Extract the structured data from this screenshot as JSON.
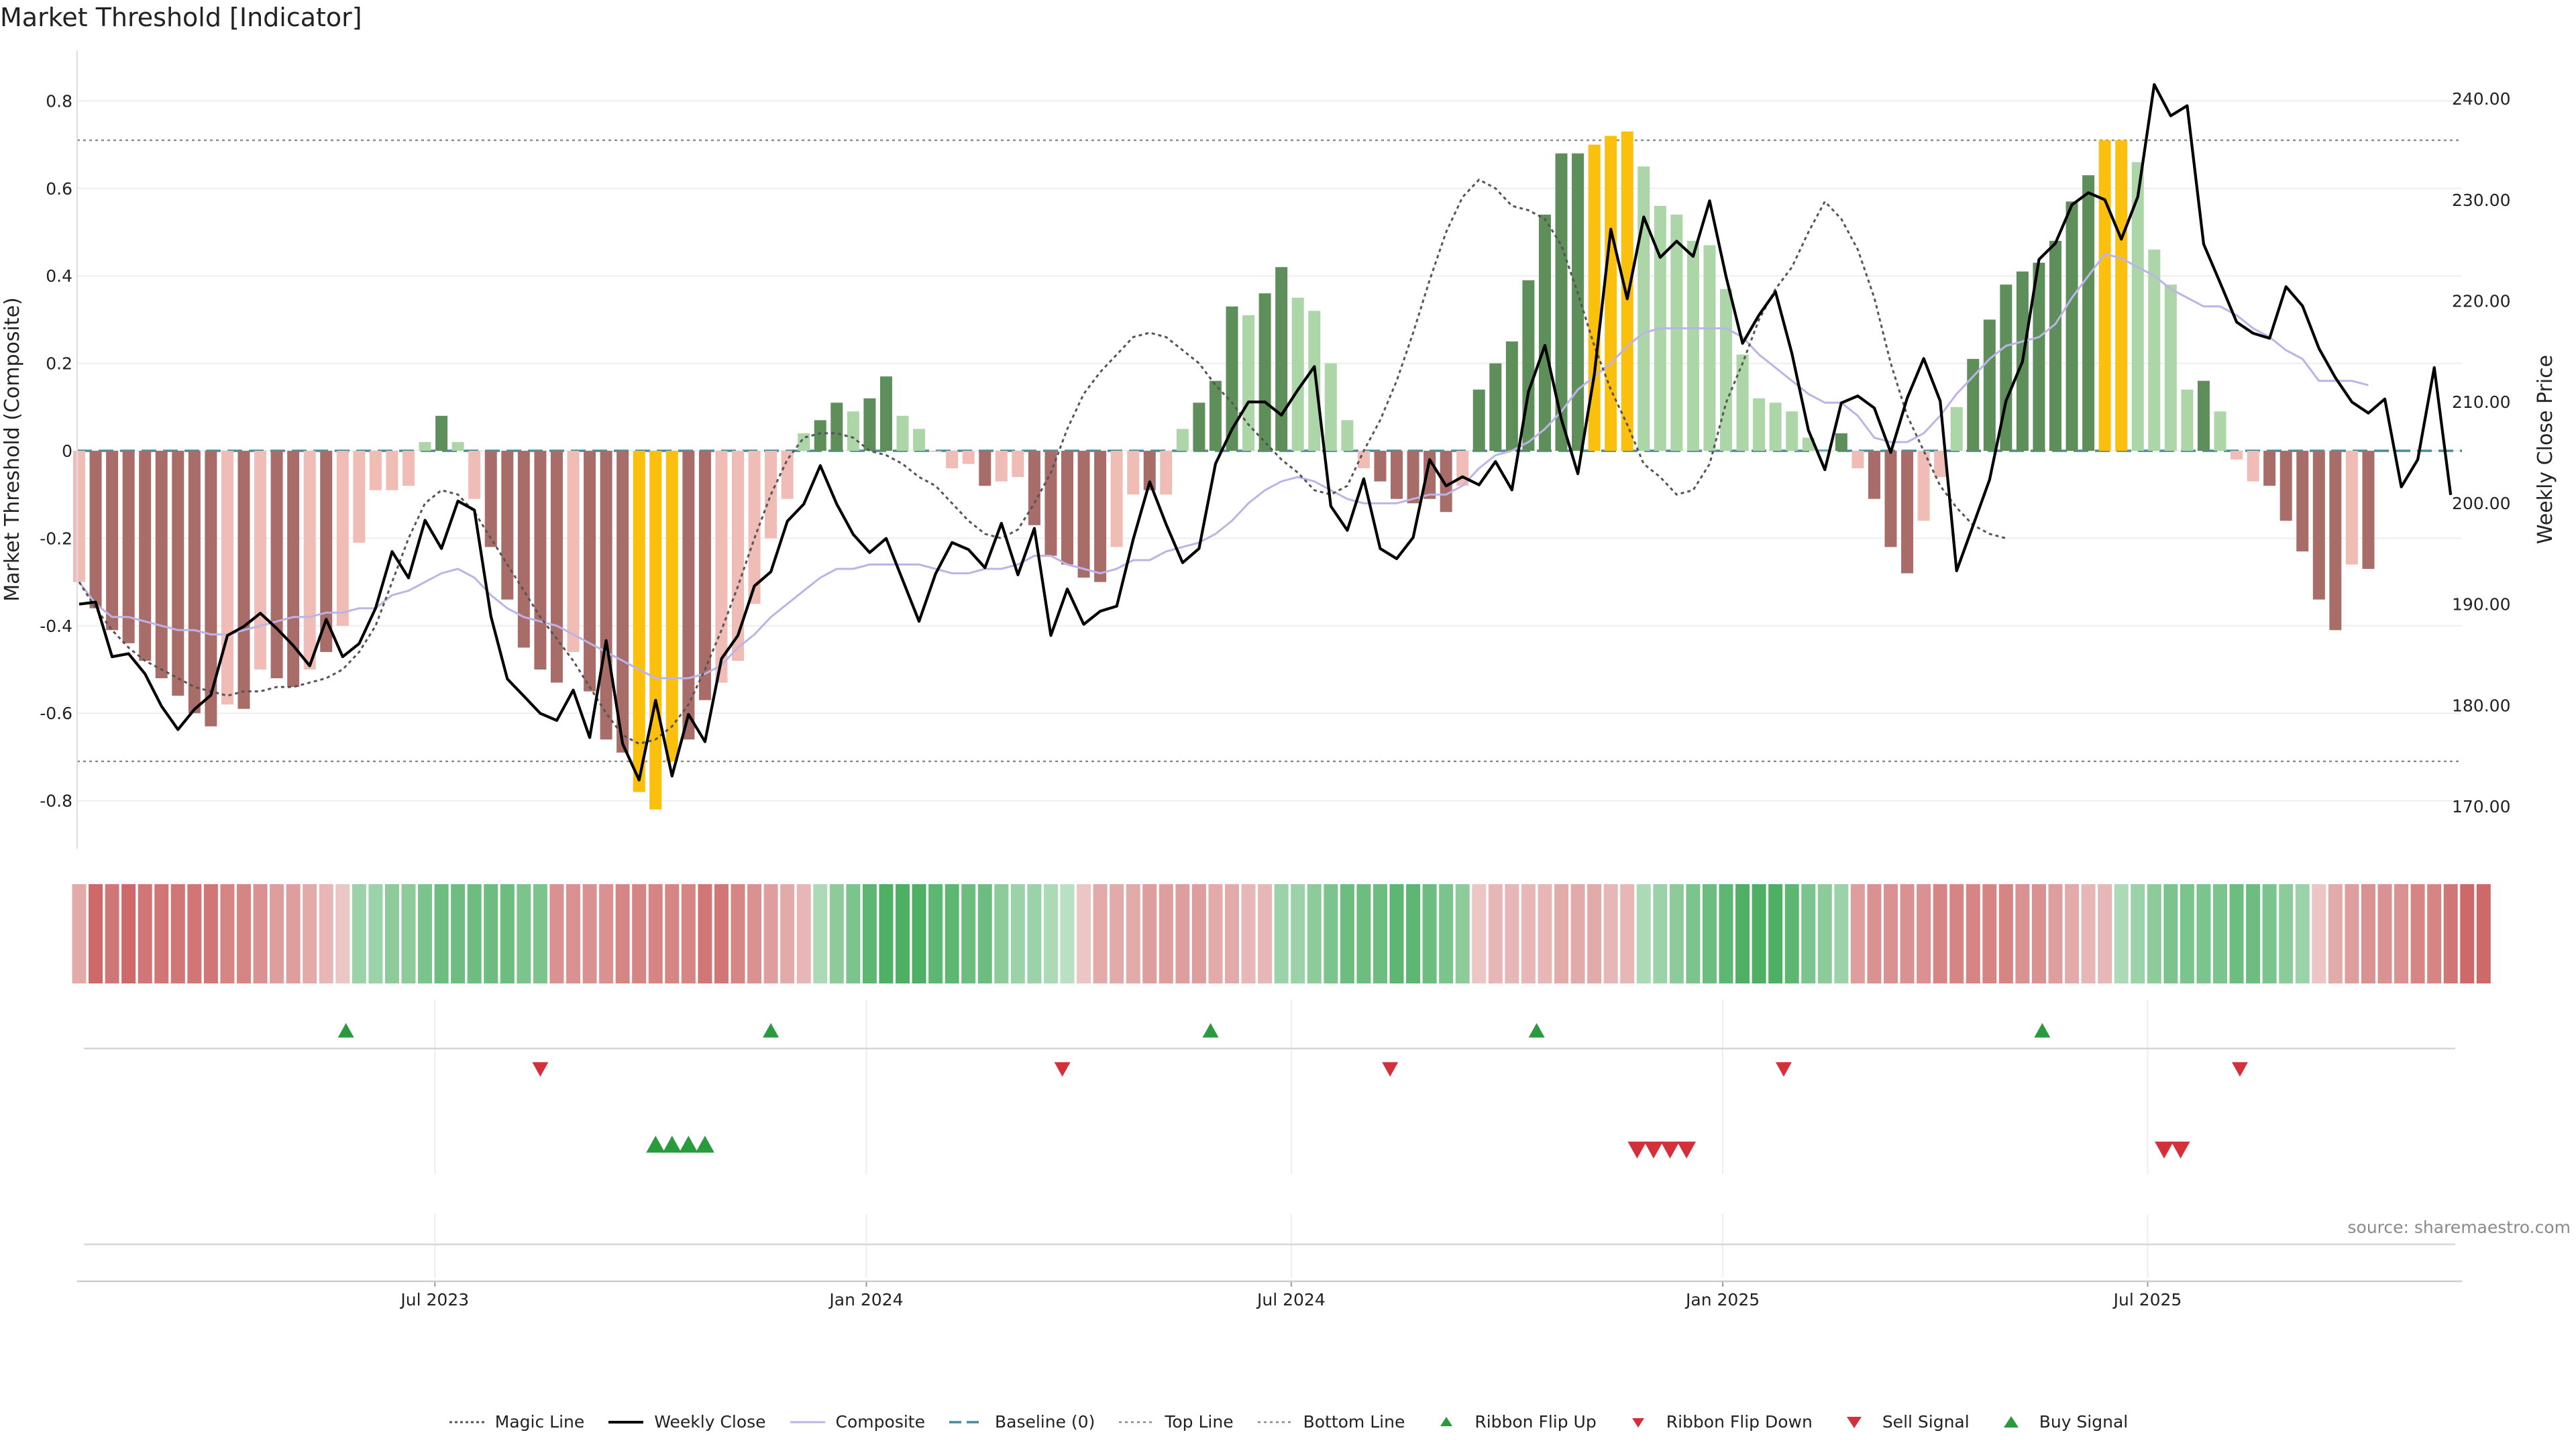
{
  "title": "Market Threshold [Indicator]",
  "source": "source: sharemaestro.com",
  "colors": {
    "bull_strong": "#5e8f5b",
    "bull_weak": "#acd6a8",
    "bear_strong": "#a86d68",
    "bear_weak": "#efbcb6",
    "extreme": "#fbbf0e",
    "magic": "#555555",
    "weekly_close": "#000000",
    "composite": "#bcb3e6",
    "baseline": "#4a8a99",
    "ribbon_up": "#2a9a3f",
    "ribbon_down": "#d3303a"
  },
  "legend": [
    {
      "label": "Magic Line",
      "icon": "dotted-line"
    },
    {
      "label": "Weekly Close",
      "icon": "solid-line"
    },
    {
      "label": "Composite",
      "icon": "lavender-line"
    },
    {
      "label": "Baseline (0)",
      "icon": "dashed-line"
    },
    {
      "label": "Top Line",
      "icon": "dotted-gray-line"
    },
    {
      "label": "Bottom Line",
      "icon": "dotted-gray-line"
    },
    {
      "label": "Ribbon Flip Up",
      "icon": "up-triangle"
    },
    {
      "label": "Ribbon Flip Down",
      "icon": "down-triangle"
    },
    {
      "label": "Sell Signal",
      "icon": "big-down-triangle"
    },
    {
      "label": "Buy Signal",
      "icon": "big-up-triangle"
    }
  ],
  "chart_data": {
    "type": "bar",
    "title": "Market Threshold [Indicator]",
    "ylabel": "Market Threshold (Composite)",
    "y2label": "Weekly Close Price",
    "ylim": [
      -0.92,
      0.92
    ],
    "y2lim": [
      166,
      243
    ],
    "y_ticks": [
      "0.8",
      "0.6",
      "0.4",
      "0.2",
      "0",
      "-0.2",
      "-0.4",
      "-0.6",
      "-0.8"
    ],
    "y2_ticks": [
      "240.00",
      "230.00",
      "220.00",
      "210.00",
      "200.00",
      "190.00",
      "180.00",
      "170.00"
    ],
    "x_ticks": [
      {
        "label": "Jul 2023",
        "week": 21.6
      },
      {
        "label": "Jan 2024",
        "week": 47.8
      },
      {
        "label": "Jul 2024",
        "week": 73.6
      },
      {
        "label": "Jan 2025",
        "week": 99.8
      },
      {
        "label": "Jul 2025",
        "week": 125.6
      }
    ],
    "top_line": 0.71,
    "bottom_line": -0.71,
    "baseline": 0,
    "weeks": 144,
    "composite_bars": [
      -0.3,
      -0.36,
      -0.41,
      -0.44,
      -0.48,
      -0.52,
      -0.56,
      -0.6,
      -0.63,
      -0.58,
      -0.59,
      -0.5,
      -0.52,
      -0.54,
      -0.5,
      -0.46,
      -0.4,
      -0.21,
      -0.09,
      -0.09,
      -0.08,
      0.02,
      0.08,
      0.02,
      -0.11,
      -0.22,
      -0.34,
      -0.45,
      -0.5,
      -0.53,
      -0.46,
      -0.55,
      -0.66,
      -0.69,
      -0.78,
      -0.82,
      -0.71,
      -0.66,
      -0.57,
      -0.53,
      -0.48,
      -0.35,
      -0.2,
      -0.11,
      0.04,
      0.07,
      0.11,
      0.09,
      0.12,
      0.17,
      0.08,
      0.05,
      0.0,
      -0.04,
      -0.03,
      -0.08,
      -0.07,
      -0.06,
      -0.17,
      -0.24,
      -0.26,
      -0.29,
      -0.3,
      -0.22,
      -0.1,
      -0.09,
      -0.1,
      0.05,
      0.11,
      0.16,
      0.33,
      0.31,
      0.36,
      0.42,
      0.35,
      0.32,
      0.2,
      0.07,
      -0.04,
      -0.07,
      -0.11,
      -0.12,
      -0.11,
      -0.14,
      -0.08,
      0.14,
      0.2,
      0.25,
      0.39,
      0.54,
      0.68,
      0.68,
      0.7,
      0.72,
      0.73,
      0.65,
      0.56,
      0.54,
      0.48,
      0.47,
      0.37,
      0.22,
      0.12,
      0.11,
      0.09,
      0.03,
      0.0,
      0.04,
      -0.04,
      -0.11,
      -0.22,
      -0.28,
      -0.16,
      -0.06,
      0.1,
      0.21,
      0.3,
      0.38,
      0.41,
      0.43,
      0.48,
      0.57,
      0.63,
      0.71,
      0.71,
      0.66,
      0.46,
      0.38,
      0.14,
      0.16,
      0.09,
      -0.02,
      -0.07,
      -0.08,
      -0.16,
      -0.23,
      -0.34,
      -0.41,
      -0.26,
      -0.27
    ],
    "bar_classes": [
      "bw",
      "bs",
      "bs",
      "bs",
      "bs",
      "bs",
      "bs",
      "bs",
      "bs",
      "bw",
      "bs",
      "bw",
      "bs",
      "bs",
      "bw",
      "bs",
      "bw",
      "bw",
      "bw",
      "bw",
      "bw",
      "gw",
      "gs",
      "gw",
      "bw",
      "bs",
      "bs",
      "bs",
      "bs",
      "bs",
      "bw",
      "bs",
      "bs",
      "bs",
      "ex",
      "ex",
      "ex",
      "bs",
      "bs",
      "bw",
      "bw",
      "bw",
      "bw",
      "bw",
      "gw",
      "gs",
      "gs",
      "gw",
      "gs",
      "gs",
      "gw",
      "gw",
      "bw",
      "bw",
      "bw",
      "bs",
      "bw",
      "bw",
      "bs",
      "bs",
      "bs",
      "bs",
      "bs",
      "bw",
      "bw",
      "bs",
      "bw",
      "gw",
      "gs",
      "gs",
      "gs",
      "gw",
      "gs",
      "gs",
      "gw",
      "gw",
      "gw",
      "gw",
      "bw",
      "bs",
      "bs",
      "bs",
      "bs",
      "bs",
      "bw",
      "gs",
      "gs",
      "gs",
      "gs",
      "gs",
      "gs",
      "gs",
      "ex",
      "ex",
      "ex",
      "gw",
      "gw",
      "gw",
      "gw",
      "gw",
      "gw",
      "gw",
      "gw",
      "gw",
      "gw",
      "gw",
      "gw",
      "gs",
      "bw",
      "bs",
      "bs",
      "bs",
      "bw",
      "bw",
      "gw",
      "gs",
      "gs",
      "gs",
      "gs",
      "gs",
      "gs",
      "gs",
      "gs",
      "ex",
      "ex",
      "gw",
      "gw",
      "gw",
      "gw",
      "gs",
      "gw",
      "bw",
      "bw",
      "bs",
      "bs",
      "bs",
      "bs",
      "bs",
      "bw",
      "bs"
    ],
    "weekly_close": [
      190.0,
      190.2,
      184.8,
      185.1,
      183.1,
      179.9,
      177.6,
      179.6,
      181.0,
      186.9,
      187.8,
      189.1,
      187.6,
      185.9,
      183.9,
      188.5,
      184.8,
      186.1,
      189.6,
      195.2,
      192.6,
      198.3,
      195.5,
      200.2,
      199.3,
      188.8,
      182.6,
      180.9,
      179.2,
      178.5,
      181.5,
      176.8,
      186.4,
      176.2,
      172.6,
      180.5,
      173.0,
      179.1,
      176.4,
      184.6,
      186.9,
      191.8,
      193.2,
      198.2,
      199.9,
      203.7,
      199.9,
      196.9,
      195.1,
      196.5,
      192.4,
      188.3,
      193.0,
      196.1,
      195.4,
      193.6,
      198.0,
      192.9,
      197.5,
      186.9,
      191.5,
      188.0,
      189.3,
      189.8,
      196.4,
      202.1,
      197.9,
      194.1,
      195.5,
      203.9,
      207.3,
      210.0,
      210.0,
      208.7,
      211.2,
      213.5,
      199.7,
      197.3,
      202.4,
      195.5,
      194.5,
      196.6,
      204.3,
      201.7,
      202.6,
      201.8,
      204.1,
      201.3,
      211.0,
      215.6,
      208.3,
      202.9,
      212.7,
      227.1,
      220.2,
      228.3,
      224.3,
      225.9,
      224.4,
      229.9,
      222.4,
      215.8,
      218.6,
      220.9,
      214.8,
      207.2,
      203.3,
      209.9,
      210.6,
      209.4,
      205.0,
      210.4,
      214.3,
      210.1,
      193.3,
      197.8,
      202.3,
      210.1,
      214.0,
      224.1,
      225.7,
      229.5,
      230.7,
      230.0,
      226.1,
      230.3,
      241.4,
      238.3,
      239.3,
      225.6,
      221.8,
      217.9,
      216.8,
      216.3,
      221.4,
      219.5,
      215.3,
      212.4,
      210.0,
      208.9,
      210.3,
      201.6,
      204.3,
      213.4,
      200.8
    ],
    "composite_line": [
      -0.3,
      -0.35,
      -0.38,
      -0.38,
      -0.39,
      -0.4,
      -0.41,
      -0.41,
      -0.42,
      -0.42,
      -0.41,
      -0.4,
      -0.39,
      -0.38,
      -0.38,
      -0.37,
      -0.37,
      -0.36,
      -0.36,
      -0.33,
      -0.32,
      -0.3,
      -0.28,
      -0.27,
      -0.29,
      -0.33,
      -0.36,
      -0.38,
      -0.39,
      -0.4,
      -0.42,
      -0.44,
      -0.46,
      -0.48,
      -0.5,
      -0.52,
      -0.52,
      -0.52,
      -0.51,
      -0.49,
      -0.45,
      -0.42,
      -0.38,
      -0.35,
      -0.32,
      -0.29,
      -0.27,
      -0.27,
      -0.26,
      -0.26,
      -0.26,
      -0.26,
      -0.27,
      -0.28,
      -0.28,
      -0.27,
      -0.27,
      -0.26,
      -0.24,
      -0.24,
      -0.26,
      -0.27,
      -0.28,
      -0.27,
      -0.25,
      -0.25,
      -0.23,
      -0.22,
      -0.21,
      -0.19,
      -0.16,
      -0.12,
      -0.09,
      -0.07,
      -0.06,
      -0.07,
      -0.09,
      -0.11,
      -0.12,
      -0.12,
      -0.12,
      -0.11,
      -0.1,
      -0.1,
      -0.08,
      -0.04,
      -0.01,
      0.0,
      0.02,
      0.05,
      0.09,
      0.14,
      0.17,
      0.2,
      0.24,
      0.27,
      0.28,
      0.28,
      0.28,
      0.28,
      0.28,
      0.26,
      0.22,
      0.19,
      0.16,
      0.13,
      0.11,
      0.11,
      0.08,
      0.03,
      0.02,
      0.02,
      0.04,
      0.08,
      0.13,
      0.17,
      0.21,
      0.24,
      0.25,
      0.26,
      0.29,
      0.35,
      0.4,
      0.45,
      0.44,
      0.42,
      0.4,
      0.37,
      0.35,
      0.33,
      0.33,
      0.31,
      0.28,
      0.26,
      0.23,
      0.21,
      0.16,
      0.16,
      0.16,
      0.15
    ],
    "magic_line": [
      -0.3,
      -0.36,
      -0.41,
      -0.45,
      -0.48,
      -0.5,
      -0.52,
      -0.54,
      -0.55,
      -0.56,
      -0.55,
      -0.55,
      -0.54,
      -0.54,
      -0.53,
      -0.52,
      -0.5,
      -0.46,
      -0.4,
      -0.3,
      -0.2,
      -0.12,
      -0.09,
      -0.1,
      -0.14,
      -0.2,
      -0.26,
      -0.32,
      -0.38,
      -0.43,
      -0.48,
      -0.54,
      -0.6,
      -0.65,
      -0.67,
      -0.66,
      -0.63,
      -0.58,
      -0.5,
      -0.41,
      -0.31,
      -0.2,
      -0.1,
      -0.02,
      0.03,
      0.04,
      0.04,
      0.03,
      0.0,
      -0.01,
      -0.03,
      -0.06,
      -0.08,
      -0.12,
      -0.16,
      -0.19,
      -0.2,
      -0.18,
      -0.12,
      -0.05,
      0.05,
      0.13,
      0.18,
      0.22,
      0.26,
      0.27,
      0.26,
      0.23,
      0.2,
      0.15,
      0.11,
      0.06,
      0.02,
      -0.02,
      -0.05,
      -0.09,
      -0.1,
      -0.08,
      0.0,
      0.07,
      0.16,
      0.27,
      0.39,
      0.5,
      0.58,
      0.62,
      0.6,
      0.56,
      0.55,
      0.53,
      0.47,
      0.36,
      0.24,
      0.14,
      0.06,
      -0.03,
      -0.06,
      -0.1,
      -0.09,
      -0.03,
      0.11,
      0.2,
      0.3,
      0.37,
      0.42,
      0.5,
      0.57,
      0.53,
      0.46,
      0.35,
      0.2,
      0.08,
      0.0,
      -0.08,
      -0.13,
      -0.17,
      -0.19,
      -0.2
    ],
    "magic_line_offset": 0,
    "ribbon_cells": [
      -0.4,
      -0.9,
      -0.8,
      -0.9,
      -0.8,
      -0.8,
      -0.8,
      -0.8,
      -0.8,
      -0.7,
      -0.7,
      -0.6,
      -0.5,
      -0.5,
      -0.4,
      -0.3,
      -0.2,
      0.4,
      0.4,
      0.5,
      0.5,
      0.6,
      0.7,
      0.7,
      0.7,
      0.7,
      0.7,
      0.6,
      0.6,
      -0.6,
      -0.6,
      -0.6,
      -0.6,
      -0.7,
      -0.7,
      -0.7,
      -0.7,
      -0.7,
      -0.8,
      -0.8,
      -0.7,
      -0.6,
      -0.5,
      -0.4,
      -0.3,
      0.3,
      0.5,
      0.6,
      0.8,
      0.9,
      0.9,
      0.9,
      0.8,
      0.8,
      0.7,
      0.7,
      0.5,
      0.4,
      0.4,
      0.3,
      0.2,
      -0.2,
      -0.4,
      -0.4,
      -0.4,
      -0.5,
      -0.5,
      -0.5,
      -0.5,
      -0.4,
      -0.4,
      -0.3,
      -0.3,
      0.4,
      0.4,
      0.5,
      0.6,
      0.7,
      0.7,
      0.7,
      0.8,
      0.8,
      0.7,
      0.6,
      0.5,
      -0.2,
      -0.3,
      -0.3,
      -0.3,
      -0.3,
      -0.4,
      -0.4,
      -0.4,
      -0.3,
      -0.3,
      0.3,
      0.4,
      0.5,
      0.6,
      0.7,
      0.8,
      0.9,
      0.9,
      0.9,
      0.8,
      0.6,
      0.5,
      0.4,
      -0.5,
      -0.6,
      -0.6,
      -0.6,
      -0.6,
      -0.7,
      -0.7,
      -0.7,
      -0.7,
      -0.7,
      -0.6,
      -0.6,
      -0.5,
      -0.4,
      -0.3,
      -0.3,
      0.3,
      0.4,
      0.5,
      0.6,
      0.6,
      0.6,
      0.6,
      0.7,
      0.7,
      0.6,
      0.5,
      0.4,
      -0.2,
      -0.4,
      -0.5,
      -0.6,
      -0.6,
      -0.6,
      -0.7,
      -0.7,
      -0.8,
      -0.9,
      -0.9
    ],
    "ribbon_flip_up_weeks": [
      16.2,
      42.0,
      68.7,
      88.5,
      119.2
    ],
    "ribbon_flip_down_weeks": [
      28.0,
      59.7,
      79.6,
      103.5,
      131.2
    ],
    "buy_signal_weeks": [
      35,
      36,
      37,
      38
    ],
    "sell_signal_weeks": [
      94.6,
      95.6,
      96.6,
      97.6,
      126.6,
      127.6
    ]
  }
}
